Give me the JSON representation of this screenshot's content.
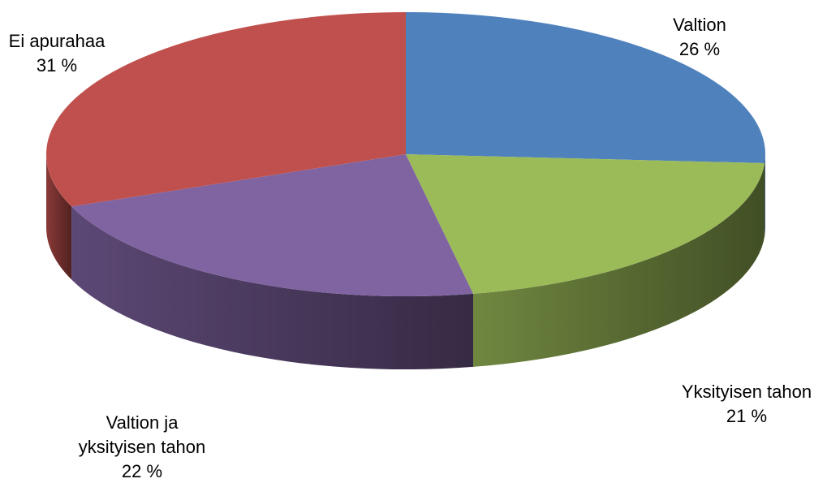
{
  "chart_data": {
    "type": "pie",
    "three_d": true,
    "legend": "none",
    "start_angle_deg": -90,
    "direction": "clockwise",
    "slices": [
      {
        "name": "Valtion",
        "name_lines": [
          "Valtion"
        ],
        "value": 26,
        "value_label": "26 %",
        "color": "#4F81BD"
      },
      {
        "name": "Yksityisen tahon",
        "name_lines": [
          "Yksityisen tahon"
        ],
        "value": 21,
        "value_label": "21 %",
        "color": "#9BBB59"
      },
      {
        "name": "Valtion ja yksityisen tahon",
        "name_lines": [
          "Valtion ja",
          "yksityisen tahon"
        ],
        "value": 22,
        "value_label": "22 %",
        "color": "#8064A2"
      },
      {
        "name": "Ei apurahaa",
        "name_lines": [
          "Ei apurahaa"
        ],
        "value": 31,
        "value_label": "31 %",
        "color": "#C0504D"
      }
    ]
  }
}
